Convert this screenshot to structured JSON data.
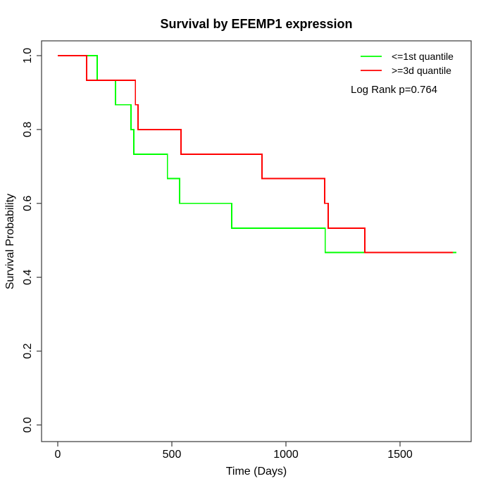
{
  "chart_data": {
    "type": "line",
    "subtype": "kaplan-meier-step-curve",
    "title": "Survival by EFEMP1 expression",
    "xlabel": "Time (Days)",
    "ylabel": "Survival Probability",
    "xlim": [
      0,
      1810
    ],
    "ylim": [
      0.0,
      1.0
    ],
    "x_ticks": [
      0,
      500,
      1000,
      1500
    ],
    "y_ticks": [
      0.0,
      0.2,
      0.4,
      0.6,
      0.8,
      1.0
    ],
    "grid": false,
    "legend_position": "top-right",
    "annotation": "Log Rank p=0.764",
    "series": [
      {
        "name": "<=1st quantile",
        "color": "#00ff00",
        "points": [
          [
            0,
            1.0
          ],
          [
            173,
            1.0
          ],
          [
            173,
            0.933
          ],
          [
            253,
            0.933
          ],
          [
            253,
            0.867
          ],
          [
            321,
            0.867
          ],
          [
            321,
            0.8
          ],
          [
            333,
            0.8
          ],
          [
            333,
            0.733
          ],
          [
            481,
            0.733
          ],
          [
            481,
            0.667
          ],
          [
            534,
            0.667
          ],
          [
            534,
            0.6
          ],
          [
            762,
            0.6
          ],
          [
            762,
            0.533
          ],
          [
            1172,
            0.533
          ],
          [
            1172,
            0.467
          ],
          [
            1747,
            0.467
          ]
        ]
      },
      {
        "name": ">=3d quantile",
        "color": "#ff0000",
        "points": [
          [
            0,
            1.0
          ],
          [
            127,
            1.0
          ],
          [
            127,
            0.933
          ],
          [
            340,
            0.933
          ],
          [
            340,
            0.867
          ],
          [
            352,
            0.867
          ],
          [
            352,
            0.8
          ],
          [
            540,
            0.8
          ],
          [
            540,
            0.733
          ],
          [
            895,
            0.733
          ],
          [
            895,
            0.667
          ],
          [
            1170,
            0.667
          ],
          [
            1170,
            0.6
          ],
          [
            1185,
            0.6
          ],
          [
            1185,
            0.533
          ],
          [
            1346,
            0.533
          ],
          [
            1346,
            0.467
          ],
          [
            1731,
            0.467
          ]
        ]
      }
    ]
  },
  "colors": {
    "axis": "#3a3a3a",
    "text": "#000000"
  }
}
